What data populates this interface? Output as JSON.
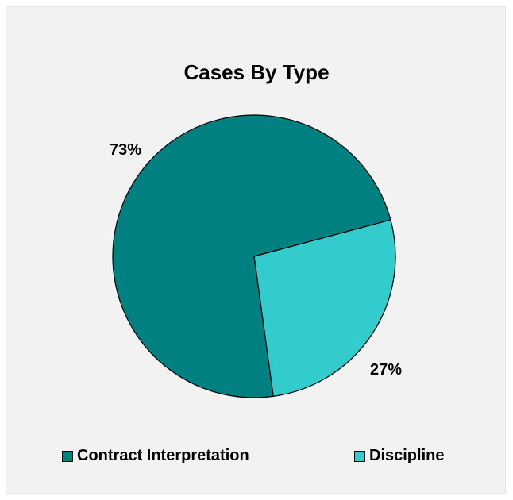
{
  "chart_data": {
    "type": "pie",
    "title": "Cases By Type",
    "categories": [
      "Contract Interpretation",
      "Discipline"
    ],
    "values": [
      73,
      27
    ],
    "labels": [
      "73%",
      "27%"
    ],
    "colors": [
      "#008080",
      "#33cccc"
    ],
    "legend_position": "bottom"
  }
}
